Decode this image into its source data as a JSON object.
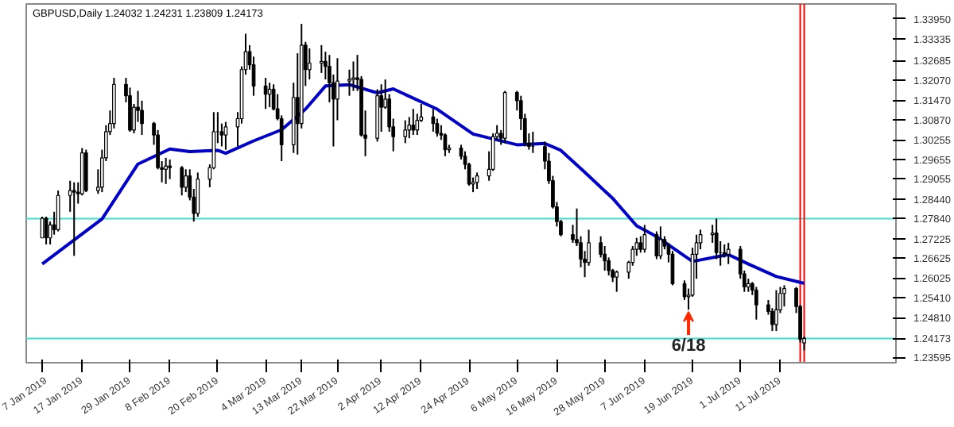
{
  "chart_data": {
    "type": "candlestick",
    "title": "GBPUSD,Daily  1.24032 1.24231 1.23809 1.24173",
    "x": [
      "2019-01-07",
      "2019-01-08",
      "2019-01-09",
      "2019-01-10",
      "2019-01-11",
      "2019-01-14",
      "2019-01-15",
      "2019-01-16",
      "2019-01-17",
      "2019-01-18",
      "2019-01-21",
      "2019-01-22",
      "2019-01-23",
      "2019-01-24",
      "2019-01-25",
      "2019-01-28",
      "2019-01-29",
      "2019-01-30",
      "2019-01-31",
      "2019-02-01",
      "2019-02-04",
      "2019-02-05",
      "2019-02-06",
      "2019-02-07",
      "2019-02-08",
      "2019-02-11",
      "2019-02-12",
      "2019-02-13",
      "2019-02-14",
      "2019-02-15",
      "2019-02-18",
      "2019-02-19",
      "2019-02-20",
      "2019-02-21",
      "2019-02-22",
      "2019-02-25",
      "2019-02-26",
      "2019-02-27",
      "2019-02-28",
      "2019-03-01",
      "2019-03-04",
      "2019-03-05",
      "2019-03-06",
      "2019-03-07",
      "2019-03-08",
      "2019-03-11",
      "2019-03-12",
      "2019-03-13",
      "2019-03-14",
      "2019-03-15",
      "2019-03-18",
      "2019-03-19",
      "2019-03-20",
      "2019-03-21",
      "2019-03-22",
      "2019-03-25",
      "2019-03-26",
      "2019-03-27",
      "2019-03-28",
      "2019-03-29",
      "2019-04-01",
      "2019-04-02",
      "2019-04-03",
      "2019-04-04",
      "2019-04-05",
      "2019-04-08",
      "2019-04-09",
      "2019-04-10",
      "2019-04-11",
      "2019-04-12",
      "2019-04-15",
      "2019-04-16",
      "2019-04-17",
      "2019-04-18",
      "2019-04-19",
      "2019-04-22",
      "2019-04-23",
      "2019-04-24",
      "2019-04-25",
      "2019-04-26",
      "2019-04-29",
      "2019-04-30",
      "2019-05-01",
      "2019-05-02",
      "2019-05-03",
      "2019-05-06",
      "2019-05-07",
      "2019-05-08",
      "2019-05-09",
      "2019-05-10",
      "2019-05-13",
      "2019-05-14",
      "2019-05-15",
      "2019-05-16",
      "2019-05-17",
      "2019-05-20",
      "2019-05-21",
      "2019-05-22",
      "2019-05-23",
      "2019-05-24",
      "2019-05-27",
      "2019-05-28",
      "2019-05-29",
      "2019-05-30",
      "2019-05-31",
      "2019-06-03",
      "2019-06-04",
      "2019-06-05",
      "2019-06-06",
      "2019-06-07",
      "2019-06-10",
      "2019-06-11",
      "2019-06-12",
      "2019-06-13",
      "2019-06-14",
      "2019-06-17",
      "2019-06-18",
      "2019-06-19",
      "2019-06-20",
      "2019-06-21",
      "2019-06-24",
      "2019-06-25",
      "2019-06-26",
      "2019-06-27",
      "2019-06-28",
      "2019-07-01",
      "2019-07-02",
      "2019-07-03",
      "2019-07-04",
      "2019-07-05",
      "2019-07-08",
      "2019-07-09",
      "2019-07-10",
      "2019-07-11",
      "2019-07-12",
      "2019-07-15",
      "2019-07-16",
      "2019-07-17"
    ],
    "ohlc": [
      [
        1.2725,
        1.279,
        1.2725,
        1.2785
      ],
      [
        1.2785,
        1.279,
        1.2705,
        1.2725
      ],
      [
        1.2725,
        1.2775,
        1.2705,
        1.2765
      ],
      [
        1.2765,
        1.2805,
        1.2735,
        1.275
      ],
      [
        1.275,
        1.287,
        1.2745,
        1.2855
      ],
      [
        1.2855,
        1.29,
        1.2805,
        1.287
      ],
      [
        1.287,
        1.2895,
        1.267,
        1.2865
      ],
      [
        1.2865,
        1.2895,
        1.283,
        1.286
      ],
      [
        1.286,
        1.3,
        1.2855,
        1.2985
      ],
      [
        1.2985,
        1.2995,
        1.2865,
        1.287
      ],
      [
        1.287,
        1.2935,
        1.286,
        1.288
      ],
      [
        1.288,
        1.2995,
        1.2865,
        1.297
      ],
      [
        1.297,
        1.307,
        1.296,
        1.305
      ],
      [
        1.305,
        1.3115,
        1.304,
        1.3075
      ],
      [
        1.3075,
        1.3215,
        1.306,
        1.3195
      ],
      [
        1.3195,
        1.3215,
        1.314,
        1.316
      ],
      [
        1.316,
        1.3185,
        1.305,
        1.3055
      ],
      [
        1.3055,
        1.3135,
        1.3045,
        1.3125
      ],
      [
        1.3125,
        1.3175,
        1.308,
        1.3115
      ],
      [
        1.3115,
        1.3145,
        1.304,
        1.3075
      ],
      [
        1.3075,
        1.308,
        1.301,
        1.304
      ],
      [
        1.304,
        1.3055,
        1.2935,
        1.294
      ],
      [
        1.294,
        1.296,
        1.2895,
        1.2935
      ],
      [
        1.2935,
        1.297,
        1.289,
        1.2945
      ],
      [
        1.2945,
        1.2965,
        1.2905,
        1.294
      ],
      [
        1.294,
        1.2945,
        1.2855,
        1.288
      ],
      [
        1.288,
        1.2935,
        1.2865,
        1.2915
      ],
      [
        1.2915,
        1.2935,
        1.284,
        1.285
      ],
      [
        1.285,
        1.2875,
        1.2775,
        1.28
      ],
      [
        1.28,
        1.2925,
        1.279,
        1.2905
      ],
      [
        1.2905,
        1.295,
        1.288,
        1.294
      ],
      [
        1.294,
        1.311,
        1.2935,
        1.305
      ],
      [
        1.305,
        1.311,
        1.3015,
        1.305
      ],
      [
        1.305,
        1.3075,
        1.3005,
        1.304
      ],
      [
        1.304,
        1.308,
        1.2995,
        1.3065
      ],
      [
        1.3065,
        1.311,
        1.3005,
        1.309
      ],
      [
        1.309,
        1.325,
        1.3075,
        1.324
      ],
      [
        1.324,
        1.335,
        1.3225,
        1.3295
      ],
      [
        1.3295,
        1.3315,
        1.324,
        1.3255
      ],
      [
        1.3255,
        1.328,
        1.316,
        1.319
      ],
      [
        1.319,
        1.3215,
        1.312,
        1.3165
      ],
      [
        1.3165,
        1.32,
        1.3125,
        1.318
      ],
      [
        1.318,
        1.3195,
        1.3115,
        1.312
      ],
      [
        1.312,
        1.3165,
        1.3085,
        1.309
      ],
      [
        1.309,
        1.31,
        1.296,
        1.301
      ],
      [
        1.301,
        1.32,
        1.2985,
        1.3155
      ],
      [
        1.3155,
        1.329,
        1.298,
        1.3075
      ],
      [
        1.3075,
        1.338,
        1.306,
        1.3315
      ],
      [
        1.3315,
        1.3325,
        1.319,
        1.324
      ],
      [
        1.324,
        1.3305,
        1.321,
        1.326
      ],
      [
        1.326,
        1.3315,
        1.323,
        1.3265
      ],
      [
        1.3265,
        1.3295,
        1.321,
        1.325
      ],
      [
        1.325,
        1.3285,
        1.314,
        1.32
      ],
      [
        1.32,
        1.3225,
        1.3005,
        1.315
      ],
      [
        1.315,
        1.3275,
        1.3085,
        1.3205
      ],
      [
        1.3205,
        1.324,
        1.316,
        1.321
      ],
      [
        1.321,
        1.3265,
        1.3175,
        1.3215
      ],
      [
        1.3215,
        1.3285,
        1.3175,
        1.321
      ],
      [
        1.321,
        1.322,
        1.3035,
        1.304
      ],
      [
        1.304,
        1.3115,
        1.2975,
        1.303
      ],
      [
        1.303,
        1.318,
        1.302,
        1.316
      ],
      [
        1.316,
        1.3195,
        1.305,
        1.3125
      ],
      [
        1.3125,
        1.321,
        1.312,
        1.315
      ],
      [
        1.315,
        1.3165,
        1.305,
        1.3065
      ],
      [
        1.3065,
        1.309,
        1.299,
        1.3035
      ],
      [
        1.3035,
        1.3085,
        1.3015,
        1.3055
      ],
      [
        1.3055,
        1.3095,
        1.303,
        1.307
      ],
      [
        1.307,
        1.312,
        1.304,
        1.3055
      ],
      [
        1.3055,
        1.3105,
        1.304,
        1.3085
      ],
      [
        1.3085,
        1.3135,
        1.308,
        1.3095
      ],
      [
        1.3095,
        1.312,
        1.305,
        1.3075
      ],
      [
        1.3075,
        1.309,
        1.3035,
        1.3045
      ],
      [
        1.3045,
        1.307,
        1.3025,
        1.304
      ],
      [
        1.304,
        1.3045,
        1.2975,
        1.2995
      ],
      [
        1.2995,
        1.301,
        1.2985,
        1.3
      ],
      [
        1.3,
        1.301,
        1.2965,
        1.2975
      ],
      [
        1.2975,
        1.299,
        1.2935,
        1.295
      ],
      [
        1.295,
        1.2955,
        1.2885,
        1.289
      ],
      [
        1.289,
        1.291,
        1.2865,
        1.2895
      ],
      [
        1.2895,
        1.2925,
        1.2875,
        1.2915
      ],
      [
        1.2915,
        1.299,
        1.29,
        1.2935
      ],
      [
        1.2935,
        1.3045,
        1.293,
        1.3035
      ],
      [
        1.3035,
        1.307,
        1.3025,
        1.3045
      ],
      [
        1.3045,
        1.3055,
        1.301,
        1.303
      ],
      [
        1.303,
        1.3175,
        1.3015,
        1.317
      ],
      [
        1.317,
        1.3175,
        1.3115,
        1.3145
      ],
      [
        1.3145,
        1.316,
        1.3055,
        1.309
      ],
      [
        1.309,
        1.3105,
        1.3005,
        1.3015
      ],
      [
        1.3015,
        1.3045,
        1.2995,
        1.3005
      ],
      [
        1.3005,
        1.305,
        1.2985,
        1.3005
      ],
      [
        1.3005,
        1.302,
        1.2935,
        1.296
      ],
      [
        1.296,
        1.2985,
        1.289,
        1.29
      ],
      [
        1.29,
        1.2915,
        1.2815,
        1.282
      ],
      [
        1.282,
        1.2835,
        1.276,
        1.2775
      ],
      [
        1.2775,
        1.278,
        1.273,
        1.2735
      ],
      [
        1.2735,
        1.2765,
        1.271,
        1.272
      ],
      [
        1.272,
        1.2815,
        1.27,
        1.271
      ],
      [
        1.271,
        1.273,
        1.2635,
        1.266
      ],
      [
        1.266,
        1.2685,
        1.2605,
        1.265
      ],
      [
        1.265,
        1.275,
        1.264,
        1.271
      ],
      [
        1.271,
        1.273,
        1.2665,
        1.2675
      ],
      [
        1.2675,
        1.27,
        1.2625,
        1.2655
      ],
      [
        1.2655,
        1.2665,
        1.261,
        1.2625
      ],
      [
        1.2625,
        1.263,
        1.259,
        1.2605
      ],
      [
        1.2605,
        1.2625,
        1.256,
        1.262
      ],
      [
        1.262,
        1.2655,
        1.26,
        1.265
      ],
      [
        1.265,
        1.27,
        1.264,
        1.269
      ],
      [
        1.269,
        1.2725,
        1.267,
        1.271
      ],
      [
        1.271,
        1.273,
        1.268,
        1.269
      ],
      [
        1.269,
        1.2765,
        1.268,
        1.2735
      ],
      [
        1.2735,
        1.2745,
        1.266,
        1.267
      ],
      [
        1.267,
        1.276,
        1.266,
        1.272
      ],
      [
        1.272,
        1.273,
        1.269,
        1.27
      ],
      [
        1.27,
        1.271,
        1.265,
        1.2675
      ],
      [
        1.2675,
        1.2685,
        1.258,
        1.2585
      ],
      [
        1.2585,
        1.2595,
        1.2535,
        1.2545
      ],
      [
        1.2545,
        1.257,
        1.2505,
        1.255
      ],
      [
        1.255,
        1.2695,
        1.2545,
        1.2675
      ],
      [
        1.2675,
        1.2735,
        1.26,
        1.271
      ],
      [
        1.271,
        1.275,
        1.269,
        1.2735
      ],
      [
        1.2735,
        1.2765,
        1.271,
        1.274
      ],
      [
        1.274,
        1.2784,
        1.266,
        1.268
      ],
      [
        1.268,
        1.2715,
        1.264,
        1.268
      ],
      [
        1.268,
        1.2705,
        1.2665,
        1.2675
      ],
      [
        1.2675,
        1.271,
        1.2645,
        1.269
      ],
      [
        1.269,
        1.27,
        1.26,
        1.2615
      ],
      [
        1.2615,
        1.2625,
        1.256,
        1.2575
      ],
      [
        1.2575,
        1.26,
        1.256,
        1.2585
      ],
      [
        1.2585,
        1.259,
        1.255,
        1.2565
      ],
      [
        1.2565,
        1.2575,
        1.2475,
        1.252
      ],
      [
        1.252,
        1.2535,
        1.249,
        1.25
      ],
      [
        1.25,
        1.251,
        1.244,
        1.246
      ],
      [
        1.246,
        1.2565,
        1.244,
        1.2505
      ],
      [
        1.2505,
        1.2575,
        1.2495,
        1.2555
      ],
      [
        1.2555,
        1.258,
        1.2515,
        1.257
      ],
      [
        1.257,
        1.2575,
        1.2495,
        1.2515
      ],
      [
        1.2515,
        1.252,
        1.2405,
        1.2415
      ],
      [
        1.24032,
        1.24231,
        1.23809,
        1.24173
      ]
    ],
    "series": [
      {
        "type": "line",
        "color": "#0000cd",
        "x": [
          "2019-01-07",
          "2019-01-22",
          "2019-01-31",
          "2019-02-08",
          "2019-02-13",
          "2019-02-20",
          "2019-02-22",
          "2019-03-01",
          "2019-03-08",
          "2019-03-14",
          "2019-03-19",
          "2019-03-25",
          "2019-04-01",
          "2019-04-05",
          "2019-04-16",
          "2019-04-25",
          "2019-05-06",
          "2019-05-13",
          "2019-05-17",
          "2019-05-23",
          "2019-05-30",
          "2019-06-05",
          "2019-06-10",
          "2019-06-19",
          "2019-06-28",
          "2019-07-03",
          "2019-07-10",
          "2019-07-17"
        ],
        "values": [
          1.2645,
          1.2783,
          1.2951,
          1.2997,
          1.2989,
          1.2993,
          1.2984,
          1.3022,
          1.3056,
          1.3119,
          1.319,
          1.3194,
          1.3169,
          1.3181,
          1.3119,
          1.3043,
          1.301,
          1.3014,
          1.2993,
          1.2926,
          1.2846,
          1.2762,
          1.2729,
          1.2653,
          1.2674,
          1.2645,
          1.2607,
          1.2586
        ]
      }
    ],
    "xlim": [
      "2019-01-03",
      "2019-08-09"
    ],
    "xticks": [
      {
        "value": "2019-01-07",
        "label": "7 Jan 2019"
      },
      {
        "value": "2019-01-17",
        "label": "17 Jan 2019"
      },
      {
        "value": "2019-01-29",
        "label": "29 Jan 2019"
      },
      {
        "value": "2019-02-08",
        "label": "8 Feb 2019"
      },
      {
        "value": "2019-02-20",
        "label": "20 Feb 2019"
      },
      {
        "value": "2019-03-04",
        "label": "4 Mar 2019"
      },
      {
        "value": "2019-03-13",
        "label": "13 Mar 2019"
      },
      {
        "value": "2019-03-22",
        "label": "22 Mar 2019"
      },
      {
        "value": "2019-04-02",
        "label": "2 Apr 2019"
      },
      {
        "value": "2019-04-12",
        "label": "12 Apr 2019"
      },
      {
        "value": "2019-04-24",
        "label": "24 Apr 2019"
      },
      {
        "value": "2019-05-06",
        "label": "6 May 2019"
      },
      {
        "value": "2019-05-16",
        "label": "16 May 2019"
      },
      {
        "value": "2019-05-28",
        "label": "28 May 2019"
      },
      {
        "value": "2019-06-07",
        "label": "7 Jun 2019"
      },
      {
        "value": "2019-06-19",
        "label": "19 Jun 2019"
      },
      {
        "value": "2019-07-01",
        "label": "1 Jul 2019"
      },
      {
        "value": "2019-07-11",
        "label": "11 Jul 2019"
      }
    ],
    "ylim": [
      1.2343,
      1.3441
    ],
    "yticks": [
      {
        "value": 1.3395,
        "label": "1.33950"
      },
      {
        "value": 1.33335,
        "label": "1.33335"
      },
      {
        "value": 1.32685,
        "label": "1.32685"
      },
      {
        "value": 1.3207,
        "label": "1.32070"
      },
      {
        "value": 1.3147,
        "label": "1.31470"
      },
      {
        "value": 1.3087,
        "label": "1.30870"
      },
      {
        "value": 1.30255,
        "label": "1.30255"
      },
      {
        "value": 1.29655,
        "label": "1.29655"
      },
      {
        "value": 1.29055,
        "label": "1.29055"
      },
      {
        "value": 1.2844,
        "label": "1.28440"
      },
      {
        "value": 1.2784,
        "label": "1.27840"
      },
      {
        "value": 1.27225,
        "label": "1.27225"
      },
      {
        "value": 1.26625,
        "label": "1.26625"
      },
      {
        "value": 1.26025,
        "label": "1.26025"
      },
      {
        "value": 1.2541,
        "label": "1.25410"
      },
      {
        "value": 1.2481,
        "label": "1.24810"
      },
      {
        "value": 1.24173,
        "label": "1.24173"
      },
      {
        "value": 1.23595,
        "label": "1.23595"
      }
    ],
    "ref_lines": [
      {
        "axis": "y",
        "value": 1.2784,
        "color": "#40e0d0"
      },
      {
        "axis": "y",
        "value": 1.24173,
        "color": "#40e0d0"
      },
      {
        "axis": "x",
        "value": "2019-07-16",
        "color": "#ff0000"
      },
      {
        "axis": "x",
        "value": "2019-07-17",
        "color": "#ff0000"
      }
    ],
    "annotations": [
      {
        "text": "6/18",
        "x": "2019-06-18",
        "y": 1.2505
      }
    ],
    "grid": false
  }
}
